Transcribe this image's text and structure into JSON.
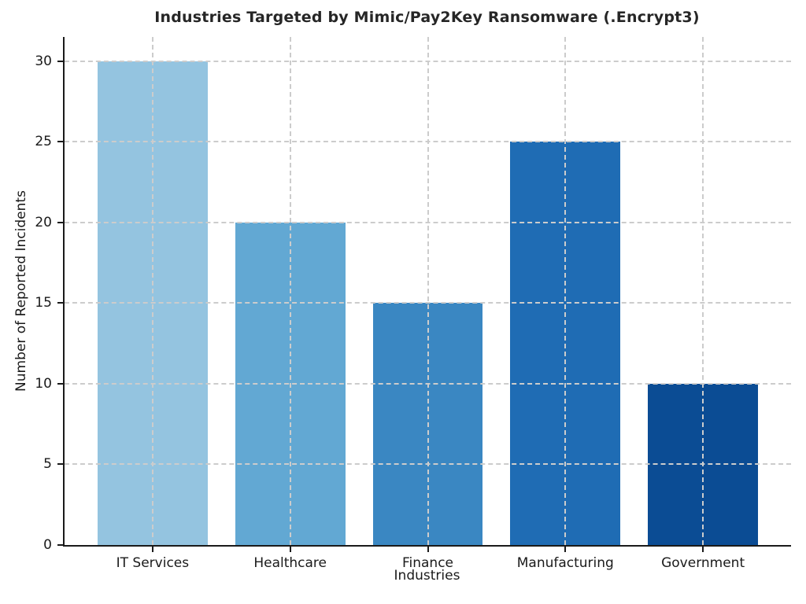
{
  "chart_data": {
    "type": "bar",
    "title": "Industries Targeted by Mimic/Pay2Key Ransomware (.Encrypt3)",
    "xlabel": "Industries",
    "ylabel": "Number of Reported Incidents",
    "categories": [
      "IT Services",
      "Healthcare",
      "Finance",
      "Manufacturing",
      "Government"
    ],
    "values": [
      30,
      20,
      15,
      25,
      10
    ],
    "bar_colors": [
      "#94c4e0",
      "#62a8d3",
      "#3a87c2",
      "#1f6cb4",
      "#0b4c94"
    ],
    "yticks": [
      0,
      5,
      10,
      15,
      20,
      25,
      30
    ],
    "ylim": [
      0,
      31.5
    ],
    "grid": "dashed, drawn above bars, horizontal and vertical",
    "grid_color": "#cccccc",
    "axis_color": "#1a1a1a",
    "legend": "none",
    "spines": "left and bottom only"
  }
}
